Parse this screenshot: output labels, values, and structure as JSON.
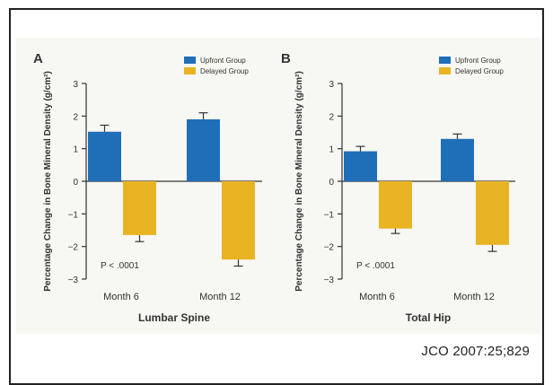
{
  "citation": "JCO 2007:25;829",
  "colors": {
    "upfront": "#1f6fb8",
    "delayed": "#e8b424",
    "axis": "#333333",
    "text": "#333333",
    "panel_bg": "#f7f7f3"
  },
  "chart_data": [
    {
      "type": "bar",
      "panel_label": "A",
      "title": "",
      "xlabel": "Lumbar Spine",
      "ylabel": "Percentage Change in Bone Mineral Density (g/cm²)",
      "categories": [
        "Month 6",
        "Month 12"
      ],
      "ylim": [
        -3,
        3
      ],
      "yticks": [
        3,
        2,
        1,
        0,
        -1,
        -2,
        -3
      ],
      "series": [
        {
          "name": "Upfront Group",
          "values": [
            1.52,
            1.9
          ],
          "errors": [
            0.2,
            0.2
          ]
        },
        {
          "name": "Delayed Group",
          "values": [
            -1.65,
            -2.4
          ],
          "errors": [
            0.2,
            0.2
          ]
        }
      ],
      "annotation": "P < .0001",
      "legend": "top-right",
      "grid": false
    },
    {
      "type": "bar",
      "panel_label": "B",
      "title": "",
      "xlabel": "Total Hip",
      "ylabel": "Percentage Change in Bone Mineral Density (g/cm²)",
      "categories": [
        "Month 6",
        "Month 12"
      ],
      "ylim": [
        -3,
        3
      ],
      "yticks": [
        3,
        2,
        1,
        0,
        -1,
        -2,
        -3
      ],
      "series": [
        {
          "name": "Upfront Group",
          "values": [
            0.92,
            1.3
          ],
          "errors": [
            0.15,
            0.15
          ]
        },
        {
          "name": "Delayed Group",
          "values": [
            -1.45,
            -1.95
          ],
          "errors": [
            0.15,
            0.2
          ]
        }
      ],
      "annotation": "P < .0001",
      "legend": "top-right",
      "grid": false
    }
  ]
}
